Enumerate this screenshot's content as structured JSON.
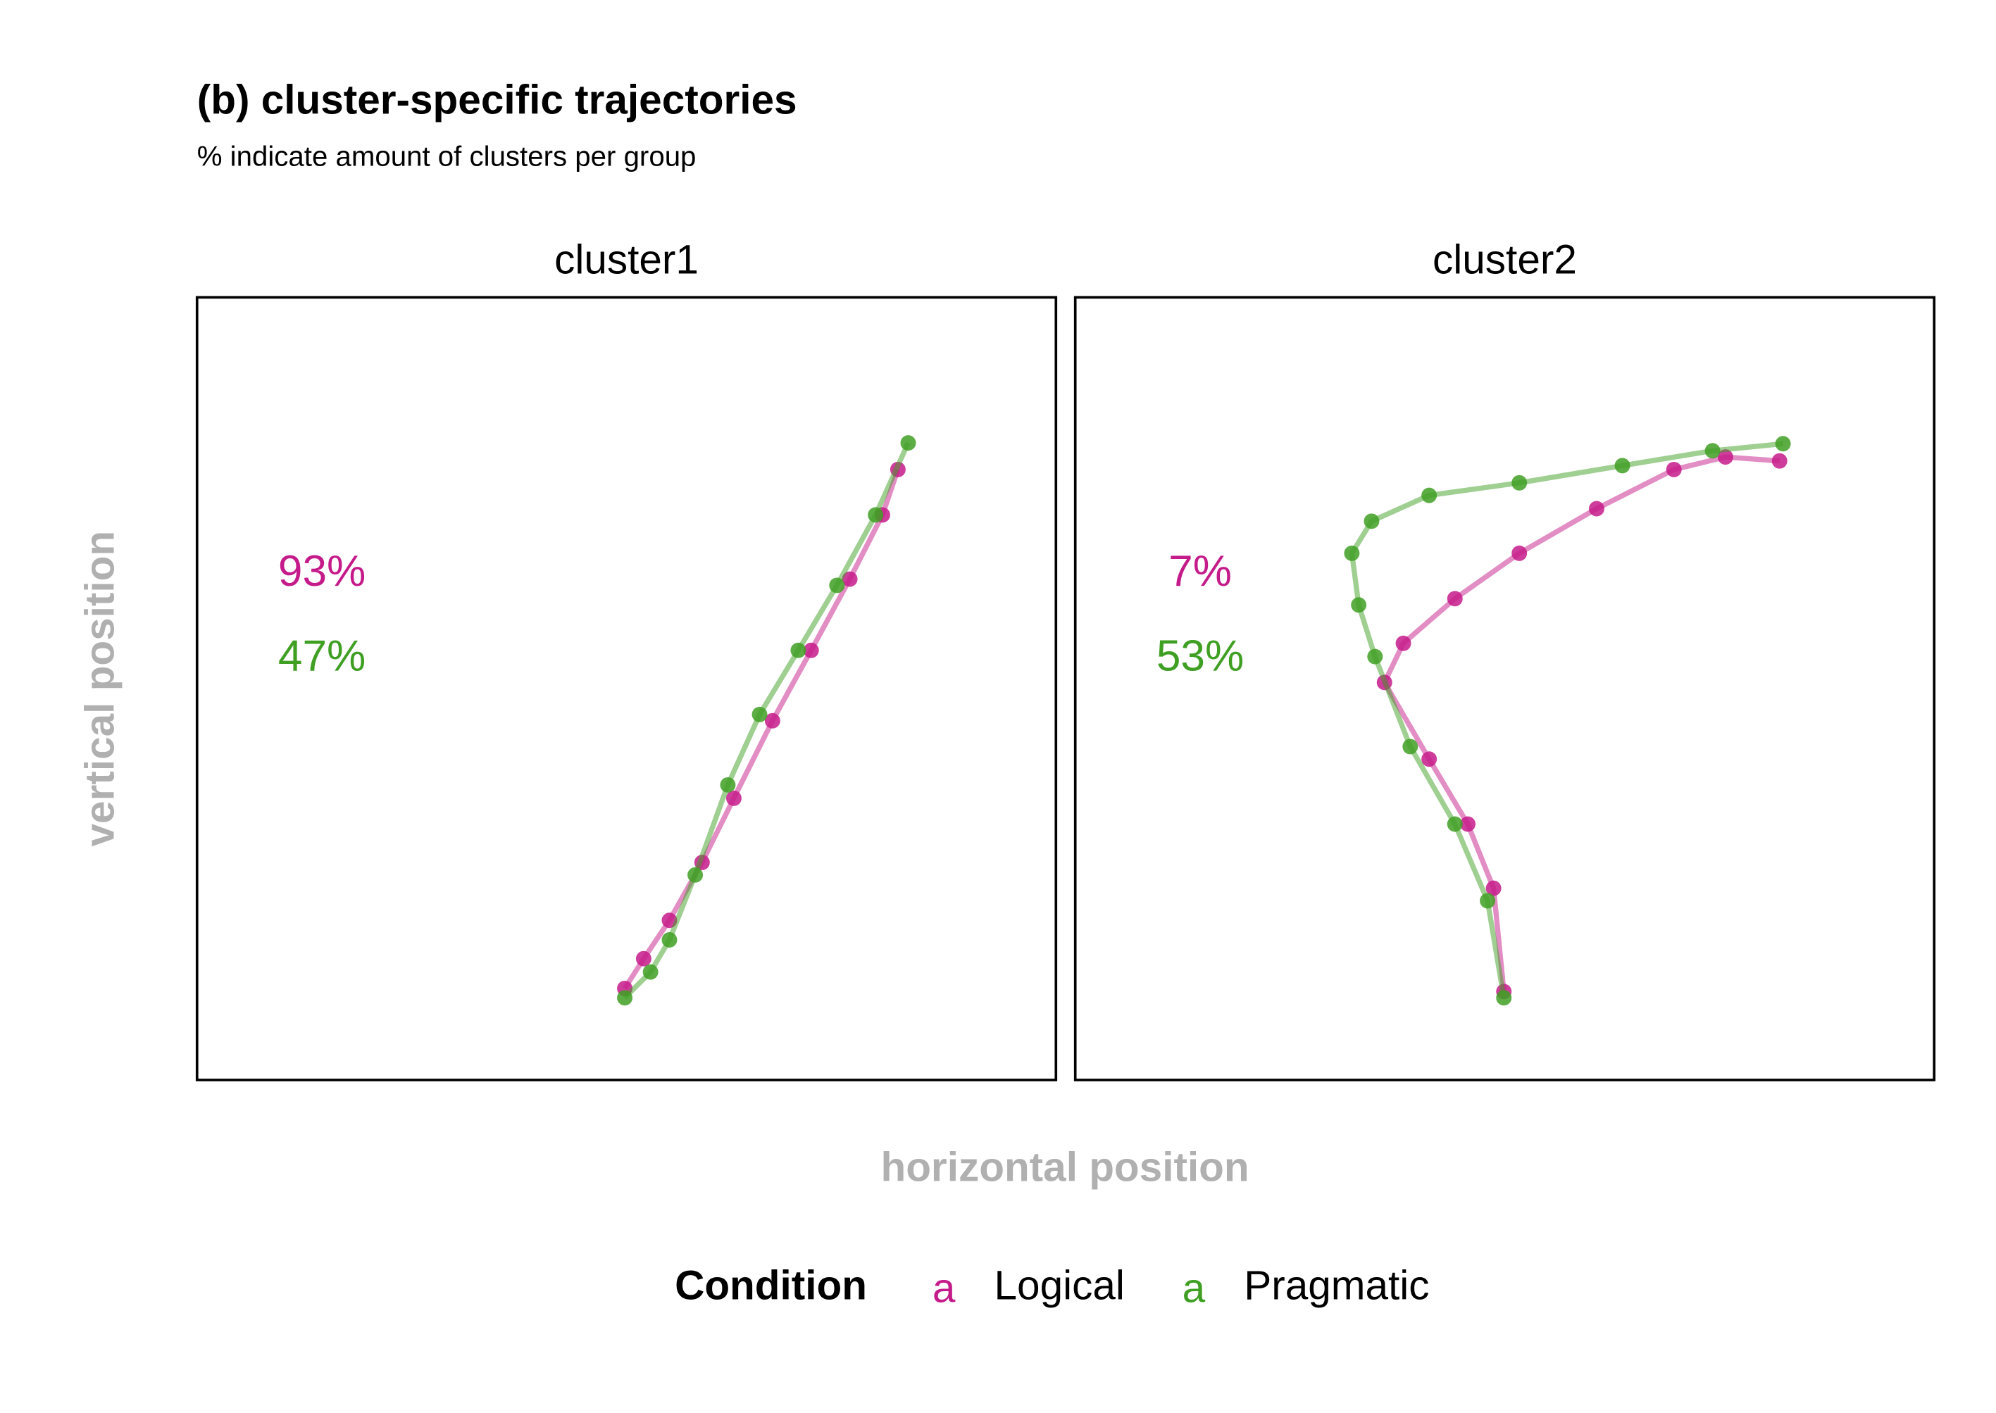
{
  "figure": {
    "title": "(b) cluster-specific trajectories",
    "subtitle": "% indicate amount of clusters per group",
    "xlabel": "horizontal position",
    "ylabel": "vertical position",
    "legend_title": "Condition",
    "legend_key": "a"
  },
  "chart_data": [
    {
      "type": "scatter",
      "title": "cluster1",
      "xlim": [
        0,
        100
      ],
      "ylim": [
        0,
        100
      ],
      "series": [
        {
          "name": "Logical",
          "color": "#c51b8a",
          "x": [
            49.8,
            52.0,
            55.0,
            58.8,
            62.5,
            67.0,
            71.5,
            76.0,
            79.8,
            81.6
          ],
          "values": [
            11.7,
            15.5,
            20.4,
            27.8,
            36.0,
            45.9,
            54.9,
            64.0,
            72.2,
            78.0
          ]
        },
        {
          "name": "Pragmatic",
          "color": "#3f9f23",
          "x": [
            49.8,
            52.8,
            55.0,
            58.0,
            61.8,
            65.5,
            70.0,
            74.5,
            79.0,
            82.8
          ],
          "values": [
            10.5,
            13.8,
            17.9,
            26.2,
            37.7,
            46.7,
            54.9,
            63.2,
            72.2,
            81.4
          ]
        }
      ],
      "shares": {
        "values": [
          93,
          47
        ],
        "value_labels": [
          "93%",
          "47%"
        ]
      }
    },
    {
      "type": "scatter",
      "title": "cluster2",
      "xlim": [
        0,
        100
      ],
      "ylim": [
        0,
        100
      ],
      "series": [
        {
          "name": "Logical",
          "color": "#c51b8a",
          "x": [
            49.9,
            48.7,
            45.7,
            41.2,
            36.0,
            38.2,
            44.2,
            51.7,
            60.7,
            69.7,
            75.7,
            82.0
          ],
          "values": [
            11.3,
            24.5,
            32.7,
            41.0,
            50.8,
            55.8,
            61.5,
            67.3,
            73.0,
            78.0,
            79.6,
            79.1
          ]
        },
        {
          "name": "Pragmatic",
          "color": "#3f9f23",
          "x": [
            49.9,
            48.0,
            44.2,
            39.0,
            34.9,
            33.0,
            32.2,
            34.5,
            41.2,
            51.7,
            63.7,
            74.2,
            82.4
          ],
          "values": [
            10.5,
            22.9,
            32.7,
            42.6,
            54.1,
            60.7,
            67.3,
            71.4,
            74.7,
            76.3,
            78.5,
            80.4,
            81.3
          ]
        }
      ],
      "shares": {
        "values": [
          7,
          53
        ],
        "value_labels": [
          "7%",
          "53%"
        ]
      }
    }
  ]
}
